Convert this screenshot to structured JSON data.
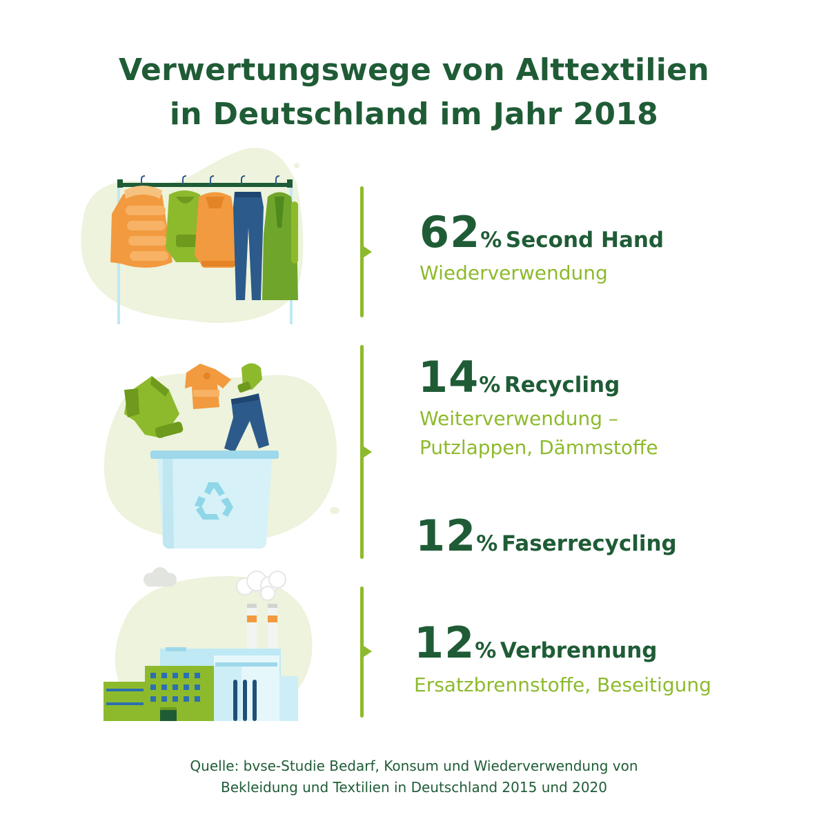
{
  "title": {
    "line1": "Verwertungswege von Alttextilien",
    "line2": "in Deutschland im Jahr 2018"
  },
  "items": [
    {
      "number": "62",
      "unit": "%",
      "label": "Second Hand",
      "sub": [
        "Wiederverwendung"
      ],
      "icon": "clothes-rack-icon"
    },
    {
      "number": "14",
      "unit": "%",
      "label": "Recycling",
      "sub": [
        "Weiterverwendung –",
        "Putzlappen, Dämmstoffe"
      ],
      "icon": "recycling-bin-icon"
    },
    {
      "number": "12",
      "unit": "%",
      "label": "Faserrecycling",
      "sub": [],
      "icon": "recycling-bin-icon"
    },
    {
      "number": "12",
      "unit": "%",
      "label": "Verbrennung",
      "sub": [
        "Ersatzbrennstoffe, Beseitigung"
      ],
      "icon": "factory-icon"
    }
  ],
  "source": {
    "line1": "Quelle: bvse-Studie Bedarf, Konsum und Wiederverwendung von",
    "line2": "Bekleidung und Textilien in Deutschland 2015 und 2020"
  },
  "colors": {
    "dark_green": "#1f5c36",
    "accent_green": "#8dba2c",
    "blob": "#edf3dc",
    "orange": "#f29a3f",
    "denim": "#2c5a8a",
    "bin": "#cdeef6"
  }
}
